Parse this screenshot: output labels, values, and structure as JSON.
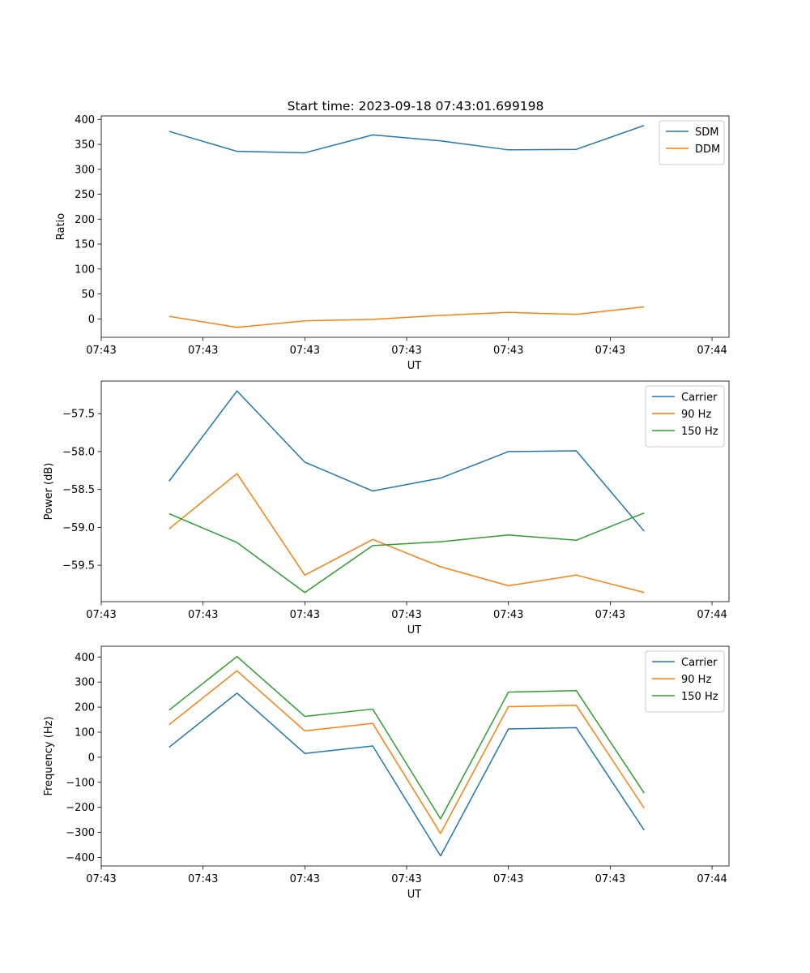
{
  "title": "Start time: 2023-09-18 07:43:01.699198",
  "chart_data": [
    {
      "type": "line",
      "xlabel": "UT",
      "ylabel": "Ratio",
      "x": [
        1,
        2,
        3,
        4,
        5,
        6,
        7,
        8
      ],
      "xlim": [
        0,
        9.25
      ],
      "xticks": [
        0,
        1.5,
        3,
        4.5,
        6,
        7.5,
        9
      ],
      "xtick_labels": [
        "07:43",
        "07:43",
        "07:43",
        "07:43",
        "07:43",
        "07:43",
        "07:44"
      ],
      "ylim": [
        -37,
        407
      ],
      "yticks": [
        0,
        50,
        100,
        150,
        200,
        250,
        300,
        350,
        400
      ],
      "ytick_labels": [
        "0",
        "50",
        "100",
        "150",
        "200",
        "250",
        "300",
        "350",
        "400"
      ],
      "legend_position": "top-right",
      "series": [
        {
          "name": "SDM",
          "color": "#1f77b4",
          "values": [
            376,
            336,
            333,
            369,
            357,
            339,
            340,
            388
          ]
        },
        {
          "name": "DDM",
          "color": "#ff7f0e",
          "values": [
            5,
            -17,
            -4,
            -1,
            7,
            13,
            9,
            24
          ]
        }
      ]
    },
    {
      "type": "line",
      "xlabel": "UT",
      "ylabel": "Power (dB)",
      "x": [
        1,
        2,
        3,
        4,
        5,
        6,
        7,
        8
      ],
      "xlim": [
        0,
        9.25
      ],
      "xticks": [
        0,
        1.5,
        3,
        4.5,
        6,
        7.5,
        9
      ],
      "xtick_labels": [
        "07:43",
        "07:43",
        "07:43",
        "07:43",
        "07:43",
        "07:43",
        "07:44"
      ],
      "ylim": [
        -59.98,
        -57.07
      ],
      "yticks": [
        -59.5,
        -59.0,
        -58.5,
        -58.0,
        -57.5
      ],
      "ytick_labels": [
        "−59.5",
        "−59.0",
        "−58.5",
        "−58.0",
        "−57.5"
      ],
      "legend_position": "top-right",
      "series": [
        {
          "name": "Carrier",
          "color": "#1f77b4",
          "values": [
            -58.39,
            -57.2,
            -58.14,
            -58.52,
            -58.35,
            -58.0,
            -57.99,
            -59.05
          ]
        },
        {
          "name": "90 Hz",
          "color": "#ff7f0e",
          "values": [
            -59.02,
            -58.29,
            -59.63,
            -59.16,
            -59.52,
            -59.77,
            -59.63,
            -59.86
          ]
        },
        {
          "name": "150 Hz",
          "color": "#2ca02c",
          "values": [
            -58.82,
            -59.2,
            -59.86,
            -59.24,
            -59.19,
            -59.1,
            -59.17,
            -58.81
          ]
        }
      ]
    },
    {
      "type": "line",
      "xlabel": "UT",
      "ylabel": "Frequency (Hz)",
      "x": [
        1,
        2,
        3,
        4,
        5,
        6,
        7,
        8
      ],
      "xlim": [
        0,
        9.25
      ],
      "xticks": [
        0,
        1.5,
        3,
        4.5,
        6,
        7.5,
        9
      ],
      "xtick_labels": [
        "07:43",
        "07:43",
        "07:43",
        "07:43",
        "07:43",
        "07:43",
        "07:44"
      ],
      "ylim": [
        -434,
        443
      ],
      "yticks": [
        -400,
        -300,
        -200,
        -100,
        0,
        100,
        200,
        300,
        400
      ],
      "ytick_labels": [
        "−400",
        "−300",
        "−200",
        "−100",
        "0",
        "100",
        "200",
        "300",
        "400"
      ],
      "legend_position": "top-right",
      "series": [
        {
          "name": "Carrier",
          "color": "#1f77b4",
          "values": [
            40,
            256,
            15,
            45,
            -394,
            113,
            118,
            -291
          ]
        },
        {
          "name": "90 Hz",
          "color": "#ff7f0e",
          "values": [
            130,
            345,
            105,
            135,
            -304,
            202,
            207,
            -203
          ]
        },
        {
          "name": "150 Hz",
          "color": "#2ca02c",
          "values": [
            188,
            402,
            163,
            192,
            -246,
            260,
            266,
            -143
          ]
        }
      ]
    }
  ]
}
